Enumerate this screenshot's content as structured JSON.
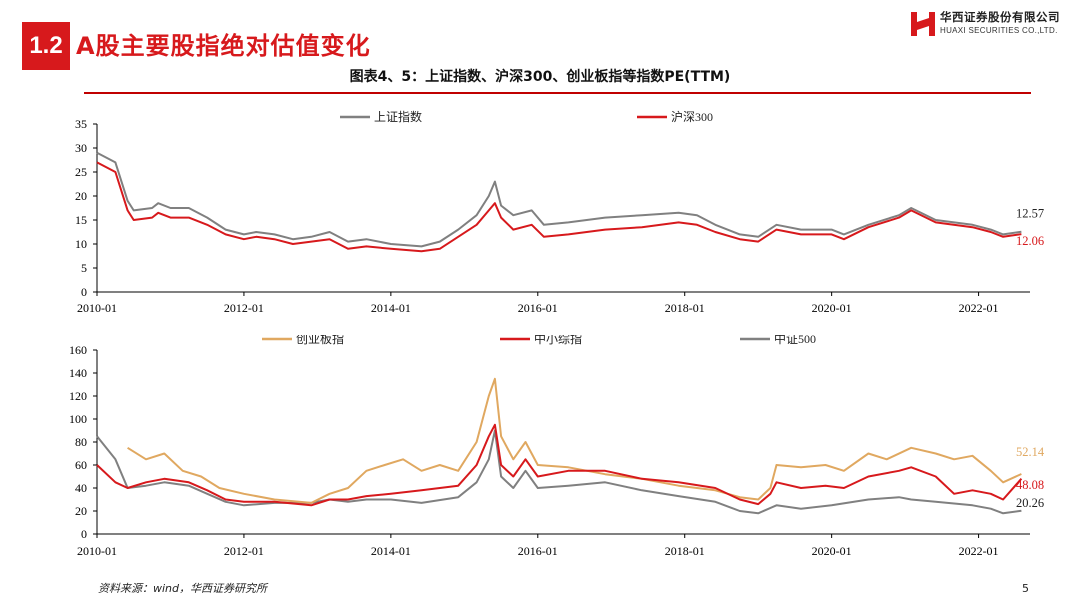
{
  "header": {
    "section_number": "1.2",
    "title": "A股主要股指绝对估值变化",
    "logo_cn": "华西证券股份有限公司",
    "logo_en": "HUAXI SECURITIES CO.,LTD."
  },
  "figure_title": "图表4、5：上证指数、沪深300、创业板指等指数PE(TTM)",
  "footer": {
    "source": "资料来源：wind，华西证券研究所",
    "page": "5"
  },
  "colors": {
    "accent": "#d7191c",
    "gray": "#808080",
    "gold": "#e0a860"
  },
  "chart_data": [
    {
      "type": "line",
      "x_ticks": [
        "2010-01",
        "2012-01",
        "2014-01",
        "2016-01",
        "2018-01",
        "2020-01",
        "2022-01"
      ],
      "ylim": [
        0,
        35
      ],
      "y_ticks": [
        0,
        5,
        10,
        15,
        20,
        25,
        30,
        35
      ],
      "legend_position": "top-left",
      "series": [
        {
          "name": "上证指数",
          "color": "#808080",
          "end_label": "12.57",
          "points": [
            [
              "2010-01",
              29
            ],
            [
              "2010-04",
              27
            ],
            [
              "2010-06",
              19
            ],
            [
              "2010-07",
              17
            ],
            [
              "2010-10",
              17.5
            ],
            [
              "2010-11",
              18.5
            ],
            [
              "2011-01",
              17.5
            ],
            [
              "2011-04",
              17.5
            ],
            [
              "2011-07",
              15.5
            ],
            [
              "2011-10",
              13
            ],
            [
              "2012-01",
              12
            ],
            [
              "2012-03",
              12.5
            ],
            [
              "2012-06",
              12
            ],
            [
              "2012-09",
              11
            ],
            [
              "2012-12",
              11.5
            ],
            [
              "2013-03",
              12.5
            ],
            [
              "2013-06",
              10.5
            ],
            [
              "2013-09",
              11
            ],
            [
              "2014-01",
              10
            ],
            [
              "2014-06",
              9.5
            ],
            [
              "2014-09",
              10.5
            ],
            [
              "2014-12",
              13
            ],
            [
              "2015-03",
              16
            ],
            [
              "2015-05",
              20
            ],
            [
              "2015-06",
              23
            ],
            [
              "2015-07",
              18
            ],
            [
              "2015-09",
              16
            ],
            [
              "2015-12",
              17
            ],
            [
              "2016-02",
              14
            ],
            [
              "2016-06",
              14.5
            ],
            [
              "2016-12",
              15.5
            ],
            [
              "2017-06",
              16
            ],
            [
              "2017-12",
              16.5
            ],
            [
              "2018-03",
              16
            ],
            [
              "2018-06",
              14
            ],
            [
              "2018-10",
              12
            ],
            [
              "2019-01",
              11.5
            ],
            [
              "2019-04",
              14
            ],
            [
              "2019-08",
              13
            ],
            [
              "2020-01",
              13
            ],
            [
              "2020-03",
              12
            ],
            [
              "2020-07",
              14
            ],
            [
              "2020-12",
              16
            ],
            [
              "2021-02",
              17.5
            ],
            [
              "2021-06",
              15
            ],
            [
              "2021-12",
              14
            ],
            [
              "2022-03",
              13
            ],
            [
              "2022-05",
              12
            ],
            [
              "2022-08",
              12.57
            ]
          ]
        },
        {
          "name": "沪深300",
          "color": "#d7191c",
          "end_label": "12.06",
          "points": [
            [
              "2010-01",
              27
            ],
            [
              "2010-04",
              25
            ],
            [
              "2010-06",
              17
            ],
            [
              "2010-07",
              15
            ],
            [
              "2010-10",
              15.5
            ],
            [
              "2010-11",
              16.5
            ],
            [
              "2011-01",
              15.5
            ],
            [
              "2011-04",
              15.5
            ],
            [
              "2011-07",
              14
            ],
            [
              "2011-10",
              12
            ],
            [
              "2012-01",
              11
            ],
            [
              "2012-03",
              11.5
            ],
            [
              "2012-06",
              11
            ],
            [
              "2012-09",
              10
            ],
            [
              "2012-12",
              10.5
            ],
            [
              "2013-03",
              11
            ],
            [
              "2013-06",
              9
            ],
            [
              "2013-09",
              9.5
            ],
            [
              "2014-01",
              9
            ],
            [
              "2014-06",
              8.5
            ],
            [
              "2014-09",
              9
            ],
            [
              "2014-12",
              11.5
            ],
            [
              "2015-03",
              14
            ],
            [
              "2015-05",
              17
            ],
            [
              "2015-06",
              18.5
            ],
            [
              "2015-07",
              15.5
            ],
            [
              "2015-09",
              13
            ],
            [
              "2015-12",
              14
            ],
            [
              "2016-02",
              11.5
            ],
            [
              "2016-06",
              12
            ],
            [
              "2016-12",
              13
            ],
            [
              "2017-06",
              13.5
            ],
            [
              "2017-12",
              14.5
            ],
            [
              "2018-03",
              14
            ],
            [
              "2018-06",
              12.5
            ],
            [
              "2018-10",
              11
            ],
            [
              "2019-01",
              10.5
            ],
            [
              "2019-04",
              13
            ],
            [
              "2019-08",
              12
            ],
            [
              "2020-01",
              12
            ],
            [
              "2020-03",
              11
            ],
            [
              "2020-07",
              13.5
            ],
            [
              "2020-12",
              15.5
            ],
            [
              "2021-02",
              17
            ],
            [
              "2021-06",
              14.5
            ],
            [
              "2021-12",
              13.5
            ],
            [
              "2022-03",
              12.5
            ],
            [
              "2022-05",
              11.5
            ],
            [
              "2022-08",
              12.06
            ]
          ]
        }
      ]
    },
    {
      "type": "line",
      "x_ticks": [
        "2010-01",
        "2012-01",
        "2014-01",
        "2016-01",
        "2018-01",
        "2020-01",
        "2022-01"
      ],
      "ylim": [
        0,
        160
      ],
      "y_ticks": [
        0,
        20,
        40,
        60,
        80,
        100,
        120,
        140,
        160
      ],
      "legend_position": "top",
      "series": [
        {
          "name": "创业板指",
          "color": "#e0a860",
          "end_label": "52.14",
          "points": [
            [
              "2010-06",
              75
            ],
            [
              "2010-09",
              65
            ],
            [
              "2010-12",
              70
            ],
            [
              "2011-03",
              55
            ],
            [
              "2011-06",
              50
            ],
            [
              "2011-09",
              40
            ],
            [
              "2012-01",
              35
            ],
            [
              "2012-06",
              30
            ],
            [
              "2012-12",
              27
            ],
            [
              "2013-03",
              35
            ],
            [
              "2013-06",
              40
            ],
            [
              "2013-09",
              55
            ],
            [
              "2013-12",
              60
            ],
            [
              "2014-03",
              65
            ],
            [
              "2014-06",
              55
            ],
            [
              "2014-09",
              60
            ],
            [
              "2014-12",
              55
            ],
            [
              "2015-03",
              80
            ],
            [
              "2015-05",
              120
            ],
            [
              "2015-06",
              135
            ],
            [
              "2015-07",
              85
            ],
            [
              "2015-09",
              65
            ],
            [
              "2015-11",
              80
            ],
            [
              "2016-01",
              60
            ],
            [
              "2016-06",
              58
            ],
            [
              "2016-12",
              52
            ],
            [
              "2017-06",
              48
            ],
            [
              "2017-12",
              42
            ],
            [
              "2018-06",
              38
            ],
            [
              "2018-10",
              32
            ],
            [
              "2019-01",
              30
            ],
            [
              "2019-03",
              40
            ],
            [
              "2019-04",
              60
            ],
            [
              "2019-08",
              58
            ],
            [
              "2019-12",
              60
            ],
            [
              "2020-03",
              55
            ],
            [
              "2020-07",
              70
            ],
            [
              "2020-10",
              65
            ],
            [
              "2021-02",
              75
            ],
            [
              "2021-06",
              70
            ],
            [
              "2021-09",
              65
            ],
            [
              "2021-12",
              68
            ],
            [
              "2022-03",
              55
            ],
            [
              "2022-05",
              45
            ],
            [
              "2022-08",
              52.14
            ]
          ]
        },
        {
          "name": "中小综指",
          "color": "#d7191c",
          "end_label": "48.08",
          "points": [
            [
              "2010-01",
              60
            ],
            [
              "2010-04",
              45
            ],
            [
              "2010-06",
              40
            ],
            [
              "2010-09",
              45
            ],
            [
              "2010-12",
              48
            ],
            [
              "2011-04",
              45
            ],
            [
              "2011-07",
              38
            ],
            [
              "2011-10",
              30
            ],
            [
              "2012-01",
              28
            ],
            [
              "2012-06",
              28
            ],
            [
              "2012-12",
              25
            ],
            [
              "2013-03",
              30
            ],
            [
              "2013-06",
              30
            ],
            [
              "2013-09",
              33
            ],
            [
              "2014-01",
              35
            ],
            [
              "2014-06",
              38
            ],
            [
              "2014-12",
              42
            ],
            [
              "2015-03",
              60
            ],
            [
              "2015-05",
              85
            ],
            [
              "2015-06",
              95
            ],
            [
              "2015-07",
              60
            ],
            [
              "2015-09",
              50
            ],
            [
              "2015-11",
              65
            ],
            [
              "2016-01",
              50
            ],
            [
              "2016-06",
              55
            ],
            [
              "2016-12",
              55
            ],
            [
              "2017-06",
              48
            ],
            [
              "2017-12",
              45
            ],
            [
              "2018-06",
              40
            ],
            [
              "2018-10",
              30
            ],
            [
              "2019-01",
              26
            ],
            [
              "2019-03",
              35
            ],
            [
              "2019-04",
              45
            ],
            [
              "2019-08",
              40
            ],
            [
              "2019-12",
              42
            ],
            [
              "2020-03",
              40
            ],
            [
              "2020-07",
              50
            ],
            [
              "2020-12",
              55
            ],
            [
              "2021-02",
              58
            ],
            [
              "2021-06",
              50
            ],
            [
              "2021-09",
              35
            ],
            [
              "2021-12",
              38
            ],
            [
              "2022-03",
              35
            ],
            [
              "2022-05",
              30
            ],
            [
              "2022-08",
              48.08
            ]
          ]
        },
        {
          "name": "中证500",
          "color": "#808080",
          "end_label": "20.26",
          "points": [
            [
              "2010-01",
              85
            ],
            [
              "2010-04",
              65
            ],
            [
              "2010-06",
              40
            ],
            [
              "2010-09",
              42
            ],
            [
              "2010-12",
              45
            ],
            [
              "2011-04",
              42
            ],
            [
              "2011-07",
              35
            ],
            [
              "2011-10",
              28
            ],
            [
              "2012-01",
              25
            ],
            [
              "2012-06",
              27
            ],
            [
              "2012-12",
              27
            ],
            [
              "2013-03",
              30
            ],
            [
              "2013-06",
              28
            ],
            [
              "2013-09",
              30
            ],
            [
              "2014-01",
              30
            ],
            [
              "2014-06",
              27
            ],
            [
              "2014-12",
              32
            ],
            [
              "2015-03",
              45
            ],
            [
              "2015-05",
              65
            ],
            [
              "2015-06",
              90
            ],
            [
              "2015-07",
              50
            ],
            [
              "2015-09",
              40
            ],
            [
              "2015-11",
              55
            ],
            [
              "2016-01",
              40
            ],
            [
              "2016-06",
              42
            ],
            [
              "2016-12",
              45
            ],
            [
              "2017-06",
              38
            ],
            [
              "2017-12",
              33
            ],
            [
              "2018-06",
              28
            ],
            [
              "2018-10",
              20
            ],
            [
              "2019-01",
              18
            ],
            [
              "2019-04",
              25
            ],
            [
              "2019-08",
              22
            ],
            [
              "2020-01",
              25
            ],
            [
              "2020-07",
              30
            ],
            [
              "2020-12",
              32
            ],
            [
              "2021-02",
              30
            ],
            [
              "2021-06",
              28
            ],
            [
              "2021-12",
              25
            ],
            [
              "2022-03",
              22
            ],
            [
              "2022-05",
              18
            ],
            [
              "2022-08",
              20.26
            ]
          ]
        }
      ]
    }
  ]
}
